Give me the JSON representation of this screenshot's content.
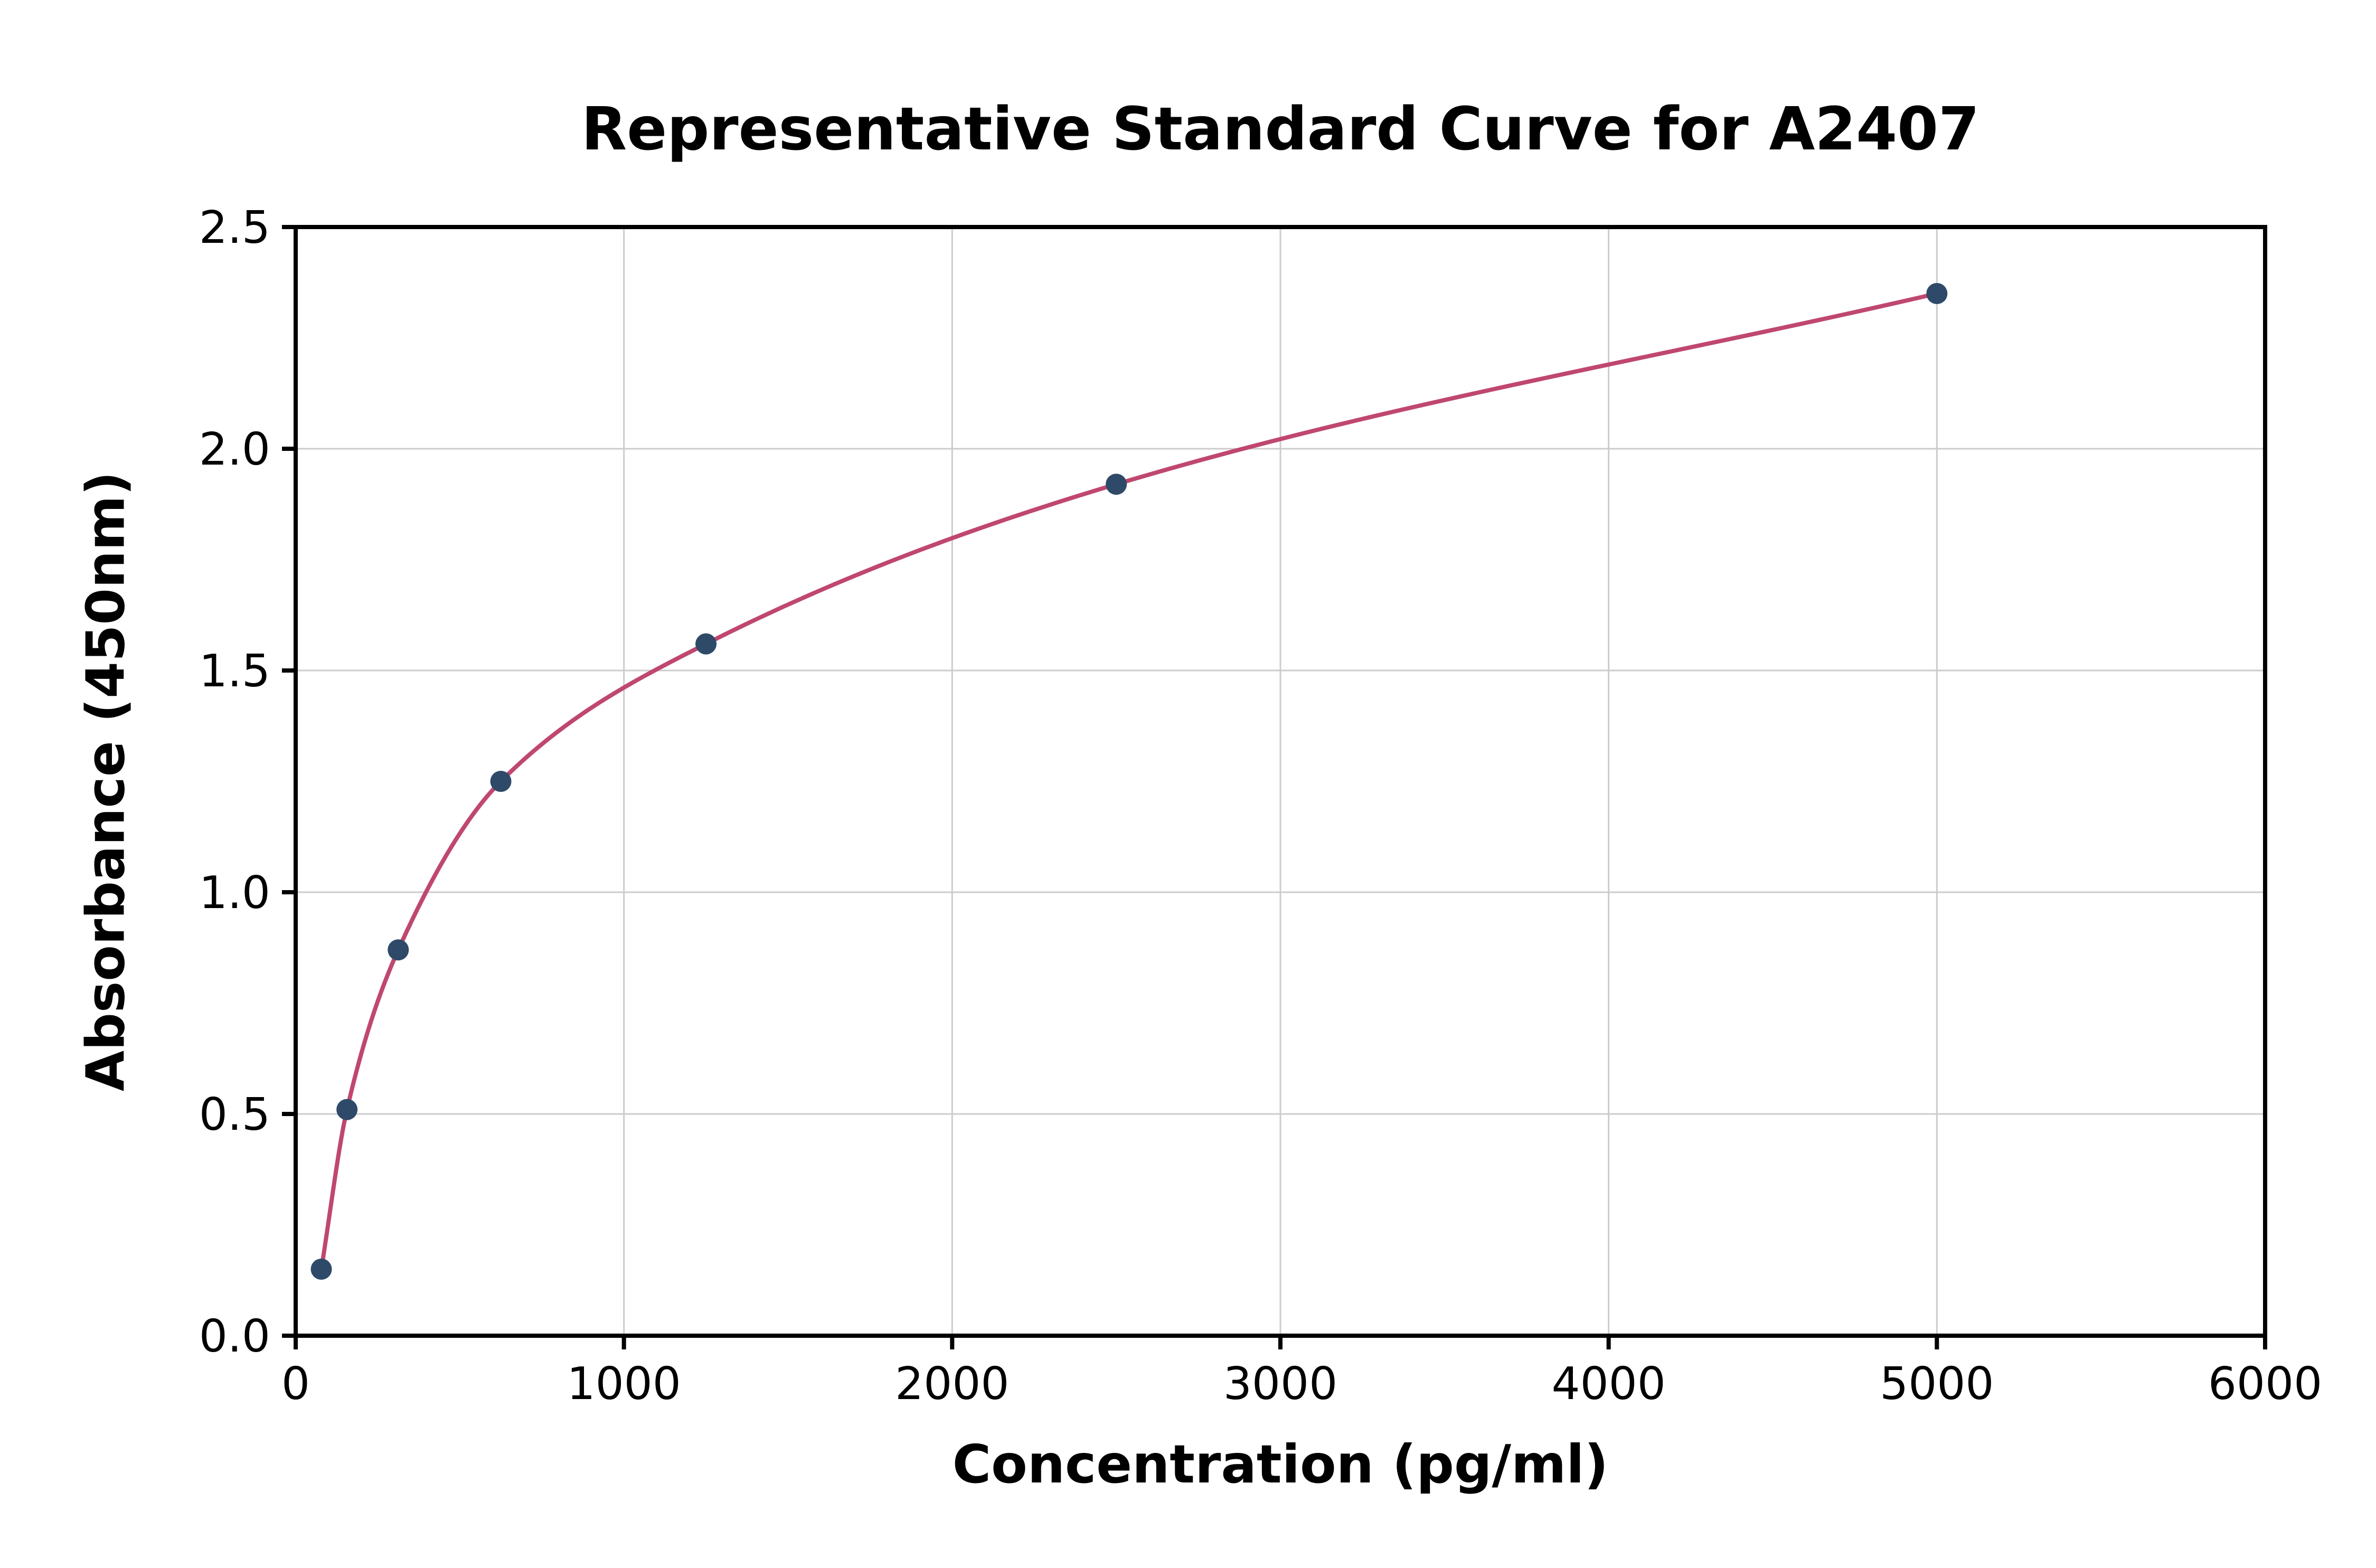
{
  "figure": {
    "title": "Representative Standard Curve for A2407",
    "xlabel": "Concentration (pg/ml)",
    "ylabel": "Absorbance (450nm)"
  },
  "chart_data": {
    "type": "scatter",
    "title": "Representative Standard Curve for A2407",
    "xlabel": "Concentration (pg/ml)",
    "ylabel": "Absorbance (450nm)",
    "series": [
      {
        "name": "standard-points",
        "x": [
          78.1,
          156.3,
          312.5,
          625,
          1250,
          2500,
          5000
        ],
        "y": [
          0.15,
          0.51,
          0.87,
          1.25,
          1.56,
          1.92,
          2.35
        ]
      }
    ],
    "fit": "smooth 4PL-style curve through the standard points",
    "xlim": [
      0,
      6000
    ],
    "ylim": [
      0,
      2.5
    ],
    "xticks": [
      0,
      1000,
      2000,
      3000,
      4000,
      5000,
      6000
    ],
    "yticks": [
      0,
      0.5,
      1,
      1.5,
      2,
      2.5
    ],
    "xtick_labels": [
      "0",
      "1000",
      "2000",
      "3000",
      "4000",
      "5000",
      "6000"
    ],
    "ytick_labels": [
      "0.0",
      "0.5",
      "1.0",
      "1.5",
      "2.0",
      "2.5"
    ],
    "grid": true,
    "legend": "none",
    "colors": {
      "point": "#2e4a68",
      "curve": "#bf4770",
      "grid": "#cccccc",
      "axis": "#000000",
      "background": "#ffffff"
    }
  }
}
